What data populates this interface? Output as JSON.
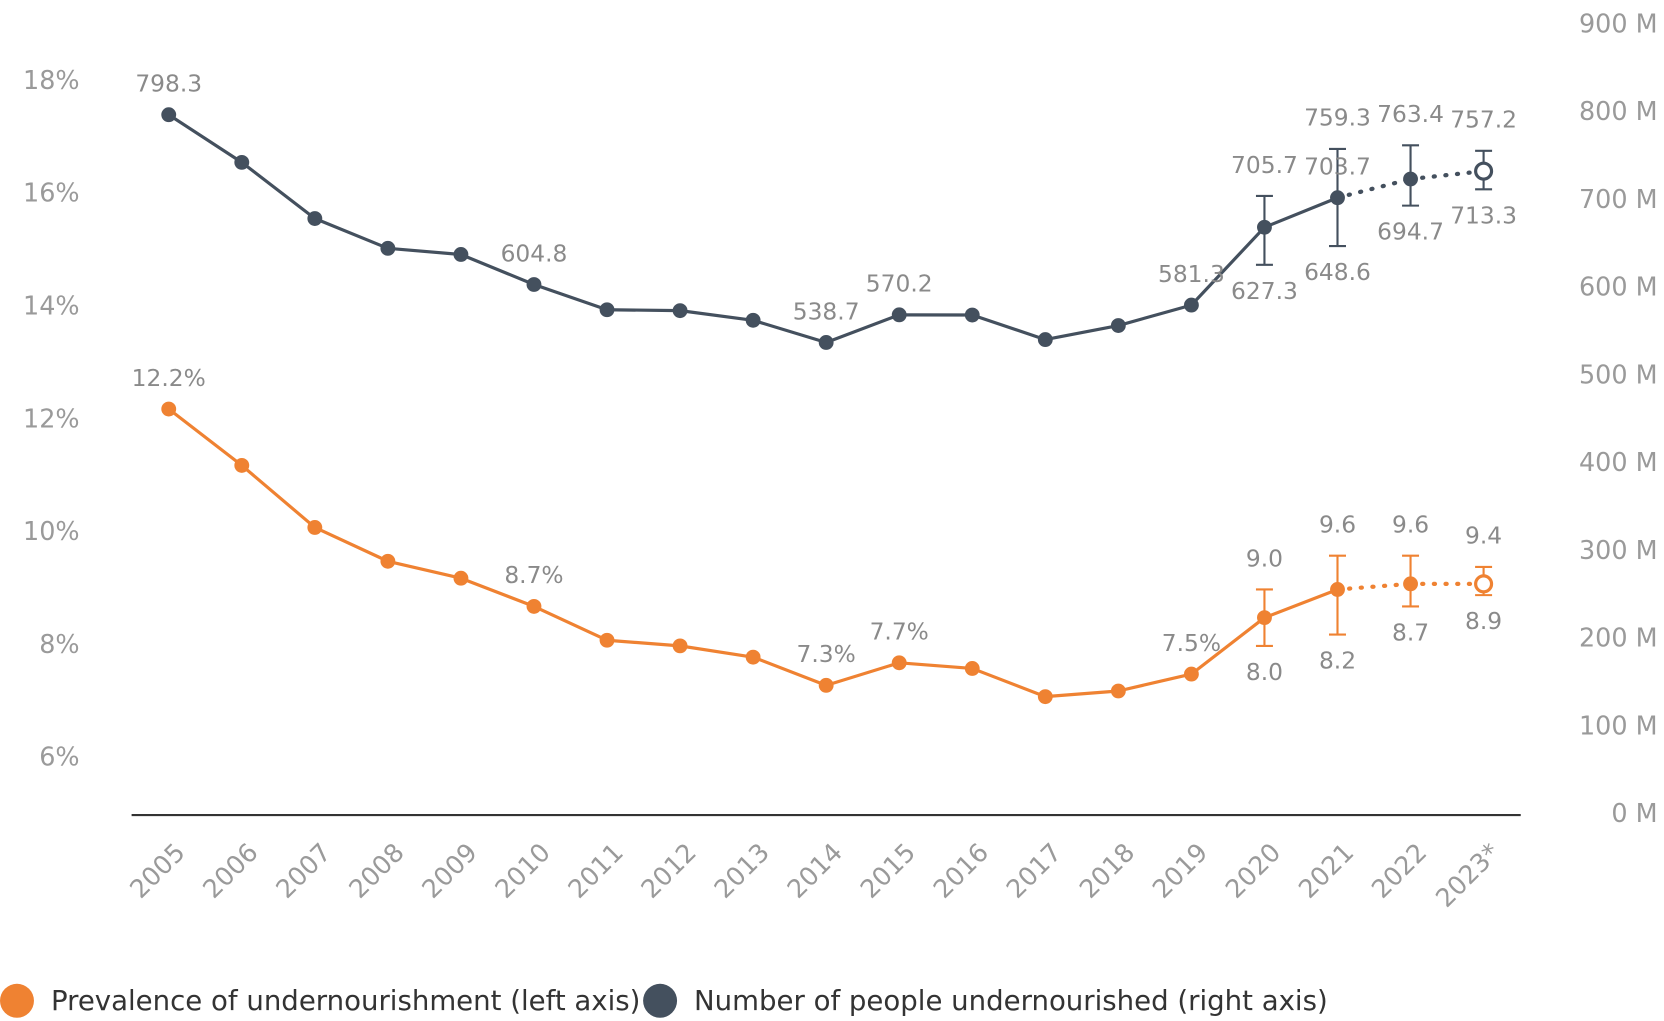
{
  "chart_data": {
    "type": "line",
    "categories": [
      "2005",
      "2006",
      "2007",
      "2008",
      "2009",
      "2010",
      "2011",
      "2012",
      "2013",
      "2014",
      "2015",
      "2016",
      "2017",
      "2018",
      "2019",
      "2020",
      "2021",
      "2022",
      "2023*"
    ],
    "ylim": [
      5,
      19
    ],
    "yticks": [
      {
        "value": 6,
        "label": "6%"
      },
      {
        "value": 8,
        "label": "8%"
      },
      {
        "value": 10,
        "label": "10%"
      },
      {
        "value": 12,
        "label": "12%"
      },
      {
        "value": 14,
        "label": "14%"
      },
      {
        "value": 16,
        "label": "16%"
      },
      {
        "value": 18,
        "label": "18%"
      }
    ],
    "y2lim": [
      0,
      900
    ],
    "y2ticks": [
      {
        "value": 0,
        "label": "0 M"
      },
      {
        "value": 100,
        "label": "100 M"
      },
      {
        "value": 200,
        "label": "200 M"
      },
      {
        "value": 300,
        "label": "300 M"
      },
      {
        "value": 400,
        "label": "400 M"
      },
      {
        "value": 500,
        "label": "500 M"
      },
      {
        "value": 600,
        "label": "600 M"
      },
      {
        "value": 700,
        "label": "700 M"
      },
      {
        "value": 800,
        "label": "800 M"
      },
      {
        "value": 900,
        "label": "900 M"
      }
    ],
    "dotted_from_index": 16,
    "open_markers": [
      18
    ],
    "legend": "bottom-left",
    "series": [
      {
        "name": "Prevalence of undernourishment (left axis)",
        "color": "#ef8232",
        "axis": "y",
        "values": [
          12.2,
          11.2,
          10.1,
          9.5,
          9.2,
          8.7,
          8.1,
          8.0,
          7.8,
          7.3,
          7.7,
          7.6,
          7.1,
          7.2,
          7.5,
          8.5,
          9.0,
          9.1,
          9.1
        ],
        "value_labels": [
          "12.2%",
          null,
          null,
          null,
          null,
          "8.7%",
          null,
          null,
          null,
          "7.3%",
          "7.7%",
          null,
          null,
          null,
          "7.5%",
          null,
          null,
          null,
          null
        ],
        "upper": [
          null,
          null,
          null,
          null,
          null,
          null,
          null,
          null,
          null,
          null,
          null,
          null,
          null,
          null,
          null,
          9.0,
          9.6,
          9.6,
          9.4
        ],
        "upper_labels": [
          null,
          null,
          null,
          null,
          null,
          null,
          null,
          null,
          null,
          null,
          null,
          null,
          null,
          null,
          null,
          "9.0",
          "9.6",
          "9.6",
          "9.4"
        ],
        "lower": [
          null,
          null,
          null,
          null,
          null,
          null,
          null,
          null,
          null,
          null,
          null,
          null,
          null,
          null,
          null,
          8.0,
          8.2,
          8.7,
          8.9
        ],
        "lower_labels": [
          null,
          null,
          null,
          null,
          null,
          null,
          null,
          null,
          null,
          null,
          null,
          null,
          null,
          null,
          null,
          "8.0",
          "8.2",
          "8.7",
          "8.9"
        ]
      },
      {
        "name": "Number of people undernourished (right axis)",
        "color": "#44505e",
        "axis": "y2",
        "values": [
          798.3,
          744,
          680,
          646,
          639,
          604.8,
          576,
          575,
          564,
          538.7,
          570.2,
          570,
          542,
          558,
          581.3,
          670,
          703.7,
          725,
          734
        ],
        "value_labels": [
          "798.3",
          null,
          null,
          null,
          null,
          "604.8",
          null,
          null,
          null,
          "538.7",
          "570.2",
          null,
          null,
          null,
          "581.3",
          null,
          "703.7",
          null,
          null
        ],
        "upper": [
          null,
          null,
          null,
          null,
          null,
          null,
          null,
          null,
          null,
          null,
          null,
          null,
          null,
          null,
          null,
          705.7,
          759.3,
          763.4,
          757.2
        ],
        "lower": [
          null,
          null,
          null,
          null,
          null,
          null,
          null,
          null,
          null,
          null,
          null,
          null,
          null,
          null,
          null,
          627.3,
          648.6,
          694.7,
          713.3
        ]
      }
    ]
  }
}
